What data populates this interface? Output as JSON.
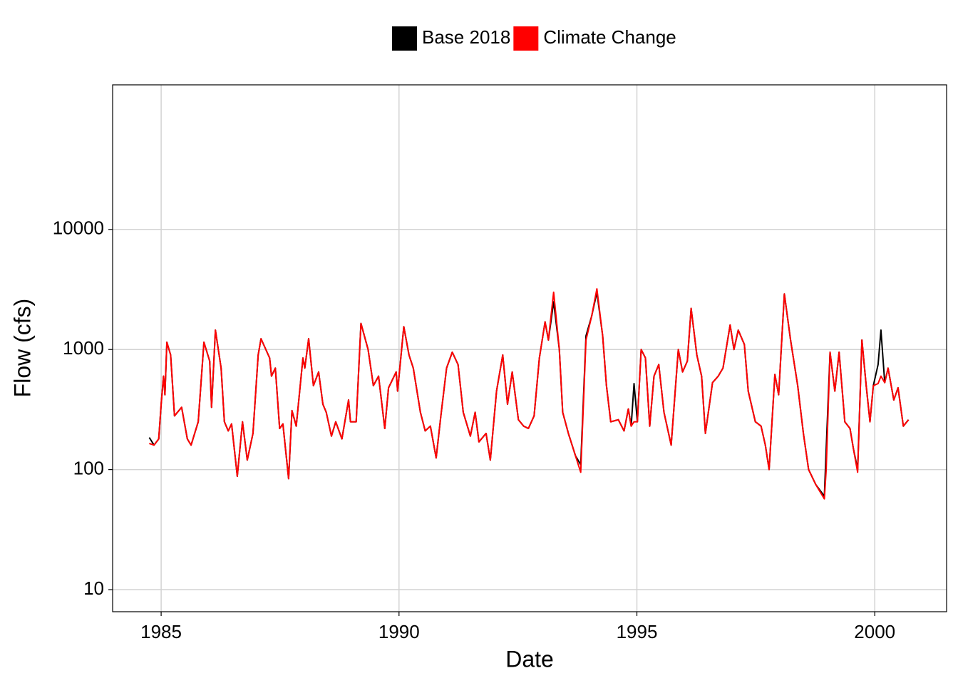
{
  "chart_data": {
    "type": "line",
    "xlabel": "Date",
    "ylabel": "Flow (cfs)",
    "log_y": true,
    "grid": true,
    "legend": "top",
    "xlim": [
      1983.98,
      2001.51
    ],
    "xticks": [
      1985,
      1990,
      1995,
      2000
    ],
    "ylim": [
      6.55,
      160000
    ],
    "yticks": [
      10,
      100,
      1000,
      10000
    ],
    "x": [
      1984.75,
      1984.85,
      1984.95,
      1985.0,
      1985.05,
      1985.08,
      1985.12,
      1985.2,
      1985.28,
      1985.43,
      1985.55,
      1985.63,
      1985.78,
      1985.9,
      1986.02,
      1986.06,
      1986.14,
      1986.26,
      1986.33,
      1986.41,
      1986.48,
      1986.6,
      1986.71,
      1986.81,
      1986.93,
      1987.04,
      1987.1,
      1987.28,
      1987.32,
      1987.4,
      1987.49,
      1987.56,
      1987.68,
      1987.75,
      1987.84,
      1987.98,
      1988.02,
      1988.1,
      1988.2,
      1988.31,
      1988.4,
      1988.47,
      1988.58,
      1988.67,
      1988.8,
      1988.94,
      1988.98,
      1989.1,
      1989.2,
      1989.35,
      1989.46,
      1989.57,
      1989.7,
      1989.78,
      1989.94,
      1989.97,
      1990.1,
      1990.21,
      1990.3,
      1990.45,
      1990.55,
      1990.66,
      1990.78,
      1990.88,
      1991.0,
      1991.12,
      1991.24,
      1991.35,
      1991.5,
      1991.6,
      1991.68,
      1991.83,
      1991.92,
      1992.05,
      1992.18,
      1992.28,
      1992.38,
      1992.51,
      1992.62,
      1992.72,
      1992.84,
      1992.95,
      1993.07,
      1993.14,
      1993.25,
      1993.37,
      1993.44,
      1993.56,
      1993.71,
      1993.82,
      1993.93,
      1994.05,
      1994.16,
      1994.28,
      1994.36,
      1994.45,
      1994.61,
      1994.73,
      1994.82,
      1994.88,
      1994.94,
      1995.01,
      1995.09,
      1995.18,
      1995.27,
      1995.36,
      1995.46,
      1995.57,
      1995.72,
      1995.87,
      1995.96,
      1996.06,
      1996.14,
      1996.26,
      1996.36,
      1996.44,
      1996.59,
      1996.71,
      1996.81,
      1996.96,
      1997.04,
      1997.13,
      1997.26,
      1997.34,
      1997.49,
      1997.61,
      1997.7,
      1997.78,
      1997.9,
      1997.98,
      1998.1,
      1998.23,
      1998.38,
      1998.5,
      1998.61,
      1998.76,
      1998.94,
      1998.98,
      1999.06,
      1999.16,
      1999.25,
      1999.37,
      1999.48,
      1999.55,
      1999.64,
      1999.73,
      1999.82,
      1999.9,
      1999.97,
      2000.07,
      2000.13,
      2000.21,
      2000.28,
      2000.4,
      2000.49,
      2000.6,
      2000.71
    ],
    "series": [
      {
        "name": "Base 2018",
        "color": "#000000",
        "values": [
          185,
          160,
          180,
          350,
          600,
          420,
          1150,
          900,
          280,
          330,
          180,
          160,
          250,
          1150,
          800,
          330,
          1450,
          700,
          250,
          210,
          240,
          88,
          250,
          120,
          200,
          900,
          1230,
          850,
          600,
          700,
          220,
          240,
          84,
          310,
          230,
          850,
          700,
          1230,
          500,
          650,
          350,
          300,
          190,
          250,
          180,
          380,
          250,
          250,
          1650,
          1000,
          500,
          600,
          220,
          480,
          650,
          450,
          1550,
          900,
          700,
          300,
          210,
          230,
          125,
          280,
          700,
          950,
          750,
          300,
          190,
          300,
          170,
          200,
          120,
          450,
          900,
          350,
          650,
          260,
          230,
          220,
          280,
          850,
          1700,
          1200,
          2500,
          1000,
          300,
          200,
          130,
          110,
          1300,
          1900,
          3000,
          1300,
          500,
          250,
          260,
          210,
          320,
          230,
          520,
          250,
          1000,
          850,
          230,
          600,
          750,
          300,
          160,
          1000,
          650,
          800,
          2200,
          900,
          600,
          200,
          530,
          600,
          700,
          1600,
          1000,
          1450,
          1100,
          450,
          250,
          230,
          160,
          100,
          620,
          420,
          2900,
          1200,
          500,
          200,
          100,
          75,
          60,
          150,
          950,
          450,
          950,
          250,
          220,
          150,
          100,
          1200,
          500,
          250,
          500,
          750,
          1450,
          530,
          700,
          380,
          480,
          230,
          260
        ]
      },
      {
        "name": "Climate Change",
        "color": "#ff0000",
        "values": [
          165,
          160,
          180,
          350,
          600,
          420,
          1150,
          900,
          280,
          330,
          180,
          160,
          250,
          1150,
          800,
          330,
          1450,
          700,
          250,
          210,
          240,
          88,
          250,
          120,
          200,
          900,
          1230,
          850,
          600,
          700,
          220,
          240,
          84,
          310,
          230,
          850,
          700,
          1230,
          500,
          650,
          350,
          300,
          190,
          250,
          180,
          380,
          250,
          250,
          1650,
          1000,
          500,
          600,
          220,
          480,
          650,
          450,
          1550,
          900,
          700,
          300,
          210,
          230,
          125,
          280,
          700,
          950,
          750,
          300,
          190,
          300,
          170,
          200,
          120,
          450,
          900,
          350,
          650,
          260,
          230,
          220,
          280,
          850,
          1700,
          1200,
          3000,
          1000,
          300,
          200,
          130,
          95,
          1200,
          1900,
          3200,
          1300,
          500,
          250,
          260,
          210,
          320,
          230,
          250,
          250,
          1000,
          850,
          230,
          600,
          750,
          300,
          160,
          1000,
          650,
          800,
          2200,
          900,
          600,
          200,
          530,
          600,
          700,
          1600,
          1000,
          1450,
          1100,
          450,
          250,
          230,
          160,
          100,
          620,
          420,
          2900,
          1200,
          500,
          200,
          100,
          75,
          57,
          100,
          950,
          450,
          950,
          250,
          220,
          150,
          95,
          1200,
          500,
          250,
          500,
          520,
          600,
          530,
          700,
          380,
          480,
          230,
          260
        ]
      }
    ]
  }
}
